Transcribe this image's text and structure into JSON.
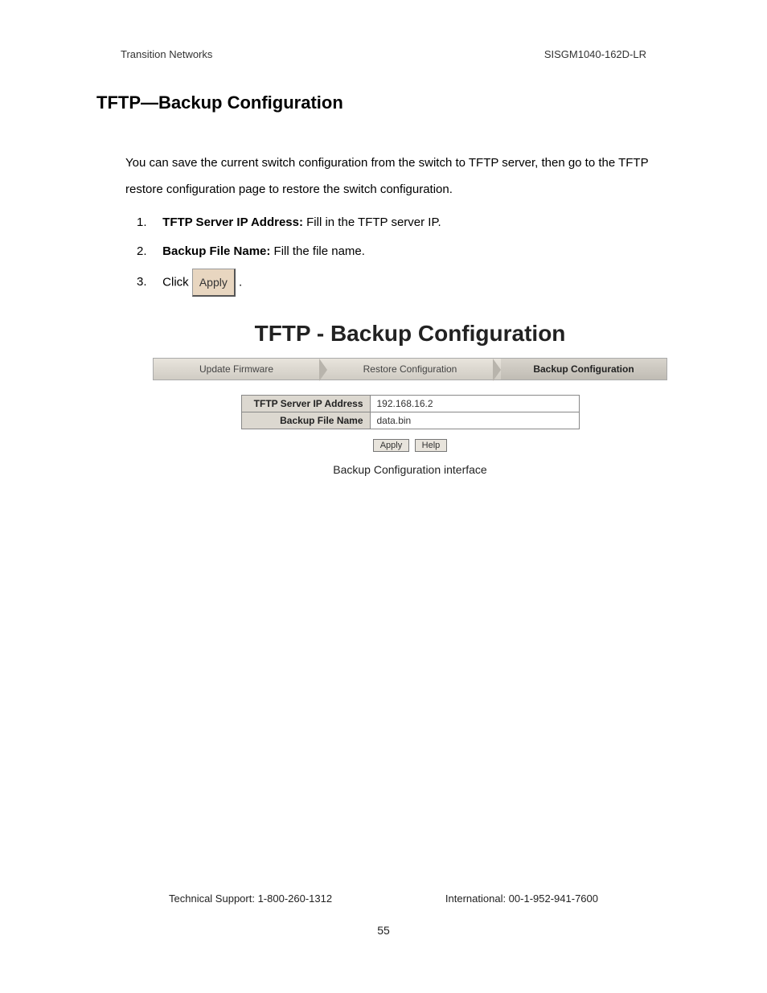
{
  "header": {
    "left": "Transition Networks",
    "right": "SISGM1040-162D-LR"
  },
  "section_title": "TFTP—Backup Configuration",
  "intro": "You can save the current switch configuration from the switch to TFTP server, then go to the TFTP restore configuration page to restore the switch configuration.",
  "steps": [
    {
      "num": "1.",
      "bold": "TFTP Server IP Address:",
      "rest": " Fill in the TFTP server IP."
    },
    {
      "num": "2.",
      "bold": "Backup File Name:",
      "rest": " Fill the file name."
    },
    {
      "num": "3.",
      "prefix": "Click ",
      "button": "Apply",
      "suffix": " ."
    }
  ],
  "screenshot": {
    "title": "TFTP - Backup Configuration",
    "tabs": [
      "Update Firmware",
      "Restore Configuration",
      "Backup Configuration"
    ],
    "active_tab_index": 2,
    "fields": [
      {
        "label": "TFTP Server IP Address",
        "value": "192.168.16.2"
      },
      {
        "label": "Backup File Name",
        "value": "data.bin"
      }
    ],
    "buttons": [
      "Apply",
      "Help"
    ],
    "caption": "Backup Configuration interface"
  },
  "footer": {
    "left": "Technical Support: 1-800-260-1312",
    "right": "International: 00-1-952-941-7600",
    "page": "55"
  }
}
